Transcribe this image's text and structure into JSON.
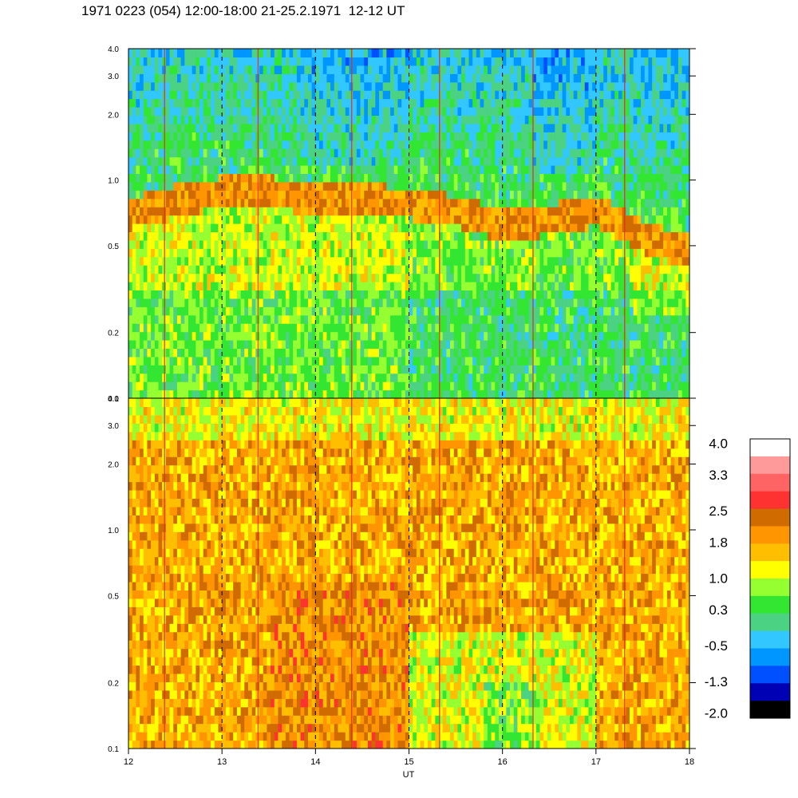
{
  "title": "1971 0223 (054) 12:00-18:00 21-25.2.1971  12-12 UT",
  "chart_data": {
    "type": "heatmap",
    "xlabel": "UT",
    "xlim": [
      12,
      18
    ],
    "x_ticks": [
      "12",
      "13",
      "14",
      "15",
      "16",
      "17",
      "18"
    ],
    "dashed_vertical_lines_at": [
      13,
      14,
      15,
      16,
      17
    ],
    "y_scale": "log",
    "panels": [
      {
        "id": "upper",
        "ylim": [
          0.1,
          4.0
        ],
        "y_ticks": [
          "4.0",
          "3.0",
          "2.0",
          "1.0",
          "0.5",
          "0.2",
          "0.1"
        ],
        "y_tick_values": [
          4.0,
          3.0,
          2.0,
          1.0,
          0.5,
          0.2,
          0.1
        ],
        "band": {
          "x": [
            12,
            12.5,
            13,
            13.5,
            14,
            14.5,
            15,
            15.5,
            16,
            16.5,
            17,
            17.5,
            18
          ],
          "center": [
            0.7,
            0.8,
            0.88,
            0.88,
            0.82,
            0.82,
            0.78,
            0.72,
            0.62,
            0.66,
            0.72,
            0.55,
            0.47
          ],
          "value": 2.0
        }
      },
      {
        "id": "lower",
        "ylim": [
          0.1,
          4.0
        ],
        "y_ticks": [
          "4.0",
          "3.0",
          "2.0",
          "1.0",
          "0.5",
          "0.2",
          "0.1"
        ],
        "y_tick_values": [
          4.0,
          3.0,
          2.0,
          1.0,
          0.5,
          0.2,
          0.1
        ]
      }
    ],
    "colorbar": {
      "labels": [
        "4.0",
        "3.3",
        "2.5",
        "1.8",
        "1.0",
        "0.3",
        "-0.5",
        "-1.3",
        "-2.0"
      ],
      "label_values": [
        4.0,
        3.3,
        2.5,
        1.8,
        1.0,
        0.3,
        -0.5,
        -1.3,
        -2.0
      ],
      "colors_top_to_bottom": [
        "#ffffff",
        "#ff9a9a",
        "#ff6464",
        "#ff3232",
        "#d06b00",
        "#ff9500",
        "#ffbf00",
        "#ffff00",
        "#96ff32",
        "#32e632",
        "#4bd282",
        "#32c8ff",
        "#0096ff",
        "#0050ff",
        "#0000b4",
        "#000000"
      ],
      "range": [
        -2.0,
        4.0
      ]
    }
  }
}
